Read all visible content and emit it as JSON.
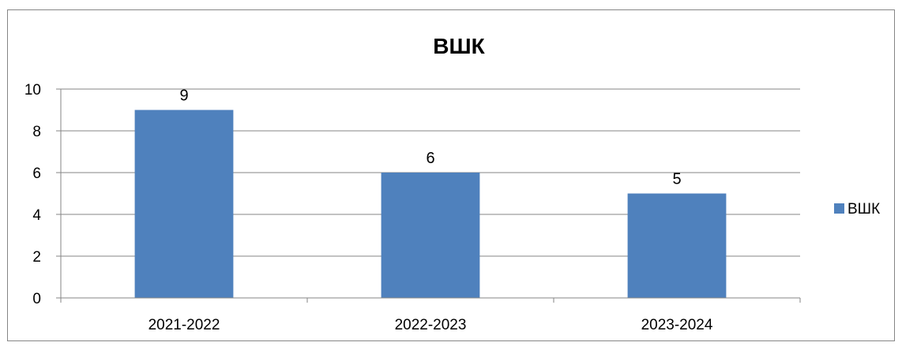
{
  "chart_data": {
    "type": "bar",
    "title": "ВШК",
    "categories": [
      "2021-2022",
      "2022-2023",
      "2023-2024"
    ],
    "series": [
      {
        "name": "ВШК",
        "values": [
          9,
          6,
          5
        ],
        "color": "#4f81bd"
      }
    ],
    "data_labels": [
      "9",
      "6",
      "5"
    ],
    "ylim": [
      0,
      10
    ],
    "yticks": [
      0,
      2,
      4,
      6,
      8,
      10
    ],
    "ytick_labels": [
      "0",
      "2",
      "4",
      "6",
      "8",
      "10"
    ],
    "grid": true,
    "legend_position": "right"
  },
  "colors": {
    "bar": "#4f81bd",
    "grid": "#868686",
    "frame": "#868686"
  }
}
